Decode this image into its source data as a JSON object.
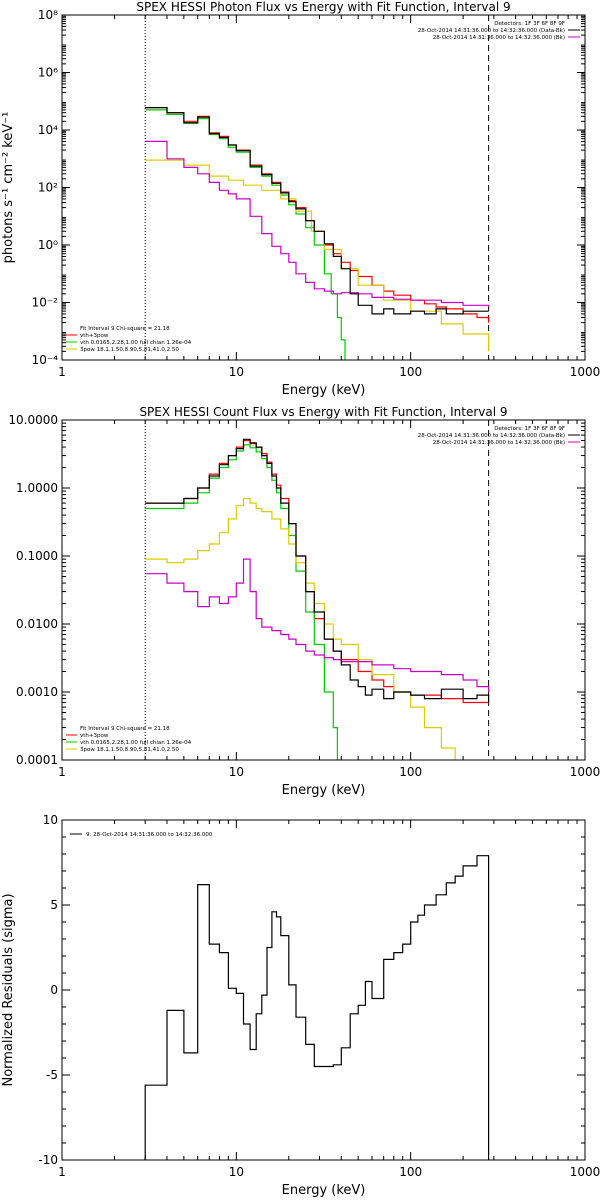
{
  "colors": {
    "background": "#ffffff",
    "axes": "#000000",
    "data": "#000000",
    "vth_3pow": "#ff0000",
    "vth": "#00cc00",
    "3pow": "#ddcc00",
    "background_model": "#cc00cc"
  },
  "chart_data": [
    {
      "type": "line",
      "title": "SPEX HESSI Photon Flux vs Energy with Fit Function, Interval 9",
      "xlabel": "Energy (keV)",
      "ylabel": "photons s⁻¹ cm⁻² keV⁻¹",
      "xscale": "log",
      "yscale": "log",
      "xlim": [
        1,
        1000
      ],
      "ylim": [
        0.0001,
        100000000
      ],
      "xticks": [
        "1",
        "10",
        "100",
        "1000"
      ],
      "yticks": [
        "10⁻⁴",
        "10⁻²",
        "10⁰",
        "10²",
        "10⁴",
        "10⁶",
        "10⁸"
      ],
      "fit_range_keV": [
        3,
        280
      ],
      "legend_top_right": [
        "Detectors: 1F 3F 6F 8F 9F",
        "28-Oct-2014 14:31:36.000 to 14:32:36.000 (Data-Bk)",
        "28-Oct-2014 14:31:36.000 to 14:32:36.000 (Bk)"
      ],
      "legend_bottom_left": [
        "Fit Interval 9   Chi-square = 21.18",
        "vth+3pow",
        "vth 0.0165,2.28,1.00  full chian 1.26e-04",
        "3pow 18.1,1.50,8.90,5.81,41.0,2.50"
      ],
      "series": [
        {
          "name": "vth+3pow",
          "color": "#ff0000",
          "x": [
            3,
            4,
            5,
            6,
            7,
            8,
            9,
            10,
            12,
            14,
            16,
            18,
            20,
            22,
            25,
            28,
            32,
            36,
            40,
            45,
            50,
            60,
            70,
            80,
            100,
            120,
            140,
            160,
            200,
            240,
            280
          ],
          "y": [
            60000,
            40000,
            20000,
            30000,
            8000,
            6000,
            3000,
            2000,
            600,
            300,
            150,
            70,
            35,
            20,
            7,
            3,
            1,
            0.5,
            0.25,
            0.13,
            0.08,
            0.04,
            0.025,
            0.018,
            0.012,
            0.009,
            0.007,
            0.006,
            0.004,
            0.003,
            0.002
          ]
        },
        {
          "name": "vth 0.0165,2.28,1.00",
          "color": "#00cc00",
          "x": [
            3,
            4,
            5,
            6,
            7,
            8,
            9,
            10,
            12,
            14,
            16,
            18,
            20,
            22,
            25,
            28,
            32,
            35,
            38,
            40,
            42
          ],
          "y": [
            50000,
            35000,
            17000,
            25000,
            7000,
            5000,
            2500,
            1700,
            500,
            250,
            120,
            55,
            25,
            12,
            4,
            1,
            0.1,
            0.02,
            0.003,
            0.0005,
            0.0001
          ]
        },
        {
          "name": "3pow 18.1,1.50,8.90,5.81,41.0,2.50",
          "color": "#ddcc00",
          "x": [
            3,
            5,
            7,
            9,
            11,
            14,
            18,
            22,
            27,
            32,
            40,
            50,
            70,
            100,
            150,
            200,
            280
          ],
          "y": [
            900,
            600,
            250,
            180,
            120,
            80,
            40,
            15,
            3,
            0.7,
            0.15,
            0.04,
            0.012,
            0.005,
            0.0018,
            0.0008,
            0.0002
          ]
        },
        {
          "name": "Bk",
          "color": "#cc00cc",
          "x": [
            3,
            4,
            5,
            6,
            7,
            8,
            9,
            10,
            12,
            14,
            16,
            18,
            20,
            22,
            25,
            28,
            32,
            36,
            40,
            50,
            60,
            80,
            100,
            150,
            200,
            280
          ],
          "y": [
            4000,
            1000,
            500,
            300,
            150,
            80,
            60,
            40,
            10,
            2.5,
            0.9,
            0.5,
            0.25,
            0.1,
            0.05,
            0.03,
            0.025,
            0.02,
            0.022,
            0.02,
            0.015,
            0.013,
            0.012,
            0.01,
            0.008,
            0.007
          ]
        },
        {
          "name": "Data-Bk",
          "color": "#000000",
          "x": [
            3,
            4,
            5,
            6,
            7,
            8,
            9,
            10,
            12,
            14,
            16,
            18,
            20,
            22,
            25,
            28,
            32,
            36,
            40,
            45,
            50,
            60,
            70,
            80,
            100,
            120,
            140,
            160,
            200,
            240,
            280
          ],
          "y": [
            60000,
            40000,
            18000,
            28000,
            7500,
            5500,
            3000,
            1900,
            550,
            280,
            140,
            65,
            32,
            18,
            7,
            3,
            1.1,
            0.4,
            0.15,
            0.02,
            0.008,
            0.004,
            0.006,
            0.004,
            0.005,
            0.004,
            0.006,
            0.004,
            0.005,
            0.005,
            0.005
          ]
        }
      ]
    },
    {
      "type": "line",
      "title": "SPEX HESSI Count Flux vs Energy with Fit Function, Interval 9",
      "xlabel": "Energy (keV)",
      "ylabel": "",
      "xscale": "log",
      "yscale": "log",
      "xlim": [
        1,
        1000
      ],
      "ylim": [
        0.0001,
        10
      ],
      "xticks": [
        "1",
        "10",
        "100",
        "1000"
      ],
      "yticks": [
        "0.0001",
        "0.0010",
        "0.0100",
        "0.1000",
        "1.0000",
        "10.0000"
      ],
      "fit_range_keV": [
        3,
        280
      ],
      "legend_top_right": [
        "Detectors: 1F 3F 6F 8F 9F",
        "28-Oct-2014 14:31:36.000 to 14:32:36.000 (Data-Bk)",
        "28-Oct-2014 14:31:36.000 to 14:32:36.000 (Bk)"
      ],
      "legend_bottom_left": [
        "Fit Interval 9   Chi-square = 21.18",
        "vth+3pow",
        "vth 0.0165,2.28,1.00  full chian 1.26e-04",
        "3pow 18.1,1.50,8.90,5.81,41.0,2.50"
      ],
      "series": [
        {
          "name": "vth+3pow",
          "color": "#ff0000",
          "x": [
            3,
            4,
            5,
            6,
            7,
            8,
            9,
            10,
            11,
            12,
            13,
            14,
            15,
            16,
            17,
            18,
            20,
            22,
            25,
            28,
            32,
            36,
            40,
            50,
            60,
            70,
            80,
            100,
            150,
            200,
            280
          ],
          "y": [
            0.6,
            0.6,
            0.7,
            1.0,
            1.6,
            2.3,
            3.0,
            4.0,
            5.0,
            4.5,
            4.0,
            3.2,
            2.4,
            1.6,
            1.1,
            0.7,
            0.3,
            0.1,
            0.03,
            0.012,
            0.006,
            0.004,
            0.003,
            0.002,
            0.0015,
            0.0012,
            0.001,
            0.0009,
            0.0008,
            0.0007,
            0.0007
          ]
        },
        {
          "name": "vth 0.0165,2.28,1.00",
          "color": "#00cc00",
          "x": [
            3,
            4,
            5,
            6,
            7,
            8,
            9,
            10,
            11,
            12,
            13,
            14,
            15,
            16,
            17,
            18,
            20,
            22,
            25,
            28,
            32,
            36,
            38,
            40
          ],
          "y": [
            0.5,
            0.5,
            0.6,
            0.85,
            1.4,
            2.0,
            2.6,
            3.5,
            4.3,
            3.9,
            3.4,
            2.7,
            2.0,
            1.3,
            0.85,
            0.5,
            0.2,
            0.06,
            0.015,
            0.005,
            0.001,
            0.0003,
            0.0001,
            5e-05
          ]
        },
        {
          "name": "3pow 18.1,1.50,8.90,5.81,41.0,2.50",
          "color": "#ddcc00",
          "x": [
            3,
            4,
            5,
            6,
            7,
            8,
            9,
            10,
            11,
            12,
            13,
            14,
            16,
            18,
            20,
            22,
            25,
            28,
            32,
            36,
            40,
            50,
            60,
            80,
            100,
            120,
            150,
            180
          ],
          "y": [
            0.09,
            0.08,
            0.09,
            0.12,
            0.15,
            0.22,
            0.35,
            0.55,
            0.7,
            0.6,
            0.5,
            0.45,
            0.35,
            0.25,
            0.15,
            0.08,
            0.04,
            0.02,
            0.01,
            0.006,
            0.005,
            0.003,
            0.0018,
            0.001,
            0.0006,
            0.0003,
            0.00015,
            0.0001
          ]
        },
        {
          "name": "Bk",
          "color": "#cc00cc",
          "x": [
            3,
            4,
            5,
            6,
            7,
            8,
            9,
            10,
            11,
            12,
            13,
            14,
            16,
            18,
            20,
            22,
            25,
            28,
            32,
            36,
            40,
            50,
            60,
            80,
            100,
            150,
            200,
            240,
            280
          ],
          "y": [
            0.055,
            0.04,
            0.03,
            0.018,
            0.025,
            0.02,
            0.025,
            0.04,
            0.09,
            0.03,
            0.012,
            0.009,
            0.008,
            0.007,
            0.006,
            0.005,
            0.004,
            0.0035,
            0.0032,
            0.003,
            0.0028,
            0.0028,
            0.0025,
            0.0022,
            0.002,
            0.0018,
            0.0015,
            0.0012,
            0.001
          ]
        },
        {
          "name": "Data-Bk",
          "color": "#000000",
          "x": [
            3,
            4,
            5,
            6,
            7,
            8,
            9,
            10,
            11,
            12,
            13,
            14,
            15,
            16,
            17,
            18,
            20,
            22,
            25,
            28,
            32,
            36,
            40,
            45,
            50,
            55,
            60,
            70,
            80,
            100,
            120,
            150,
            200,
            240,
            280
          ],
          "y": [
            0.6,
            0.6,
            0.7,
            1.0,
            1.5,
            2.2,
            3.0,
            3.8,
            5.2,
            4.6,
            4.0,
            3.0,
            2.3,
            1.5,
            1.0,
            0.6,
            0.3,
            0.1,
            0.03,
            0.015,
            0.006,
            0.004,
            0.0025,
            0.0015,
            0.0012,
            0.0009,
            0.0011,
            0.0008,
            0.001,
            0.0009,
            0.0008,
            0.0011,
            0.0008,
            0.0009,
            0.0007
          ]
        }
      ]
    },
    {
      "type": "line",
      "title": "",
      "xlabel": "Energy (keV)",
      "ylabel": "Normalized Residuals (sigma)",
      "xscale": "log",
      "yscale": "linear",
      "xlim": [
        1,
        1000
      ],
      "ylim": [
        -10,
        10
      ],
      "xticks": [
        "1",
        "10",
        "100",
        "1000"
      ],
      "yticks": [
        "-10",
        "-5",
        "0",
        "5",
        "10"
      ],
      "legend_top_left": [
        "9: 28-Oct-2014 14:31:36.000 to 14:32:36.000"
      ],
      "series": [
        {
          "name": "residuals",
          "color": "#000000",
          "x": [
            3,
            4,
            5,
            6,
            7,
            8,
            9,
            10,
            11,
            12,
            13,
            14,
            15,
            16,
            17,
            18,
            20,
            22,
            25,
            28,
            32,
            36,
            40,
            45,
            50,
            55,
            60,
            70,
            80,
            90,
            100,
            110,
            120,
            140,
            160,
            180,
            200,
            240,
            280
          ],
          "y": [
            -5.6,
            -1.2,
            -3.7,
            6.2,
            2.7,
            2.2,
            0.1,
            -0.2,
            -2.0,
            -3.5,
            -1.4,
            -0.3,
            2.5,
            4.6,
            4.3,
            3.2,
            0.3,
            -1.6,
            -3.2,
            -4.5,
            -4.5,
            -4.4,
            -3.4,
            -1.4,
            -0.9,
            0.5,
            -0.5,
            1.8,
            2.2,
            2.7,
            4.0,
            4.4,
            5.0,
            5.6,
            6.3,
            6.7,
            7.3,
            7.9,
            7.8
          ]
        }
      ]
    }
  ]
}
